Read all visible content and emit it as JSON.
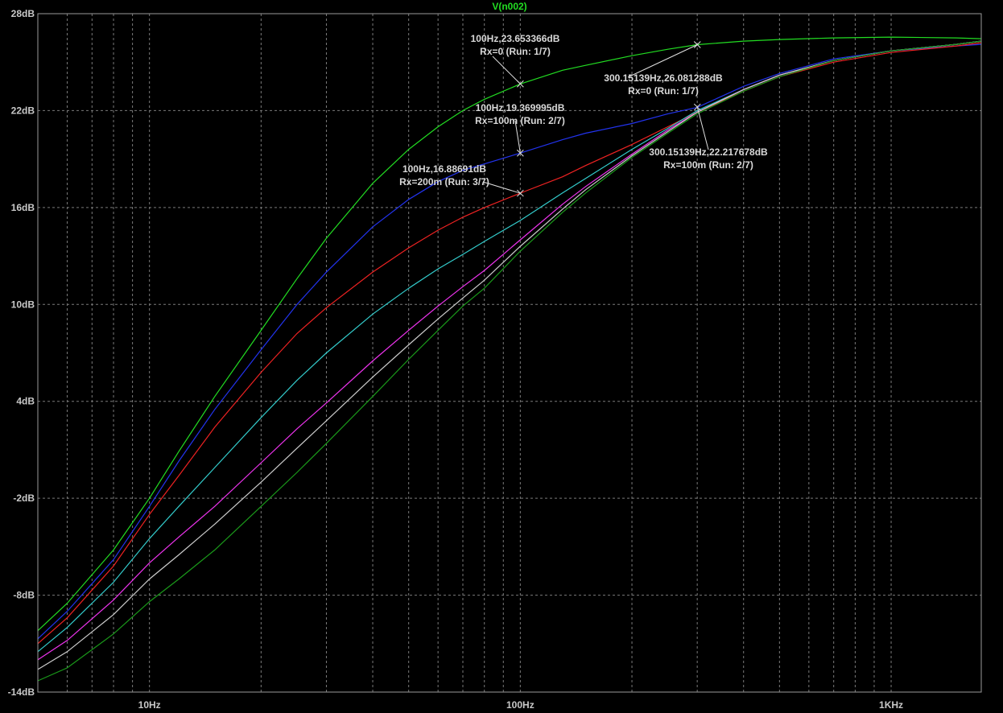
{
  "chart_data": {
    "type": "line",
    "title": "V(n002)",
    "xscale": "log",
    "xlim": [
      5,
      1750
    ],
    "ylim": [
      -14,
      28
    ],
    "x_ticks": [
      {
        "value": 10,
        "label": "10Hz"
      },
      {
        "value": 100,
        "label": "100Hz"
      },
      {
        "value": 1000,
        "label": "1KHz"
      }
    ],
    "y_ticks": [
      {
        "value": 28,
        "label": "28dB"
      },
      {
        "value": 22,
        "label": "22dB"
      },
      {
        "value": 16,
        "label": "16dB"
      },
      {
        "value": 10,
        "label": "10dB"
      },
      {
        "value": 4,
        "label": "4dB"
      },
      {
        "value": -2,
        "label": "-2dB"
      },
      {
        "value": -8,
        "label": "-8dB"
      },
      {
        "value": -14,
        "label": "-14dB"
      }
    ],
    "grid": true,
    "background": "#000000",
    "grid_color": "#7a7a7a",
    "series": [
      {
        "color": "#22dd22",
        "x": [
          5,
          6,
          8,
          10,
          12,
          15,
          20,
          25,
          30,
          40,
          50,
          60,
          70,
          80,
          100,
          130,
          150,
          200,
          250,
          300,
          400,
          500,
          700,
          1000,
          1500,
          1750
        ],
        "y": [
          -10.2,
          -8.5,
          -5.2,
          -2.0,
          0.9,
          4.3,
          8.4,
          11.6,
          14.1,
          17.5,
          19.6,
          21.0,
          22.0,
          22.7,
          23.65,
          24.5,
          24.8,
          25.4,
          25.8,
          26.08,
          26.3,
          26.4,
          26.5,
          26.55,
          26.5,
          26.45
        ]
      },
      {
        "color": "#2233ee",
        "x": [
          5,
          6,
          8,
          10,
          12,
          15,
          20,
          25,
          30,
          40,
          50,
          60,
          70,
          80,
          100,
          130,
          150,
          200,
          250,
          300,
          400,
          500,
          700,
          1000,
          1500,
          1750
        ],
        "y": [
          -10.7,
          -9.0,
          -5.8,
          -2.5,
          0.3,
          3.5,
          7.2,
          10.0,
          12.0,
          14.8,
          16.5,
          17.6,
          18.3,
          18.7,
          19.37,
          20.2,
          20.6,
          21.2,
          21.8,
          22.2,
          23.5,
          24.3,
          25.2,
          25.7,
          26.0,
          26.1
        ]
      },
      {
        "color": "#ee2222",
        "x": [
          5,
          6,
          8,
          10,
          12,
          15,
          20,
          25,
          30,
          40,
          50,
          60,
          70,
          80,
          100,
          130,
          150,
          200,
          250,
          300,
          400,
          500,
          700,
          1000,
          1500,
          1750
        ],
        "y": [
          -11.0,
          -9.4,
          -6.2,
          -3.0,
          -0.6,
          2.4,
          5.8,
          8.2,
          9.8,
          12.0,
          13.5,
          14.6,
          15.4,
          16.0,
          16.89,
          17.9,
          18.6,
          19.9,
          21.0,
          21.9,
          23.2,
          24.1,
          25.0,
          25.6,
          26.0,
          26.2
        ]
      },
      {
        "color": "#33cccc",
        "x": [
          5,
          6,
          8,
          10,
          12,
          15,
          20,
          25,
          30,
          40,
          50,
          60,
          70,
          80,
          100,
          130,
          150,
          200,
          250,
          300,
          400,
          500,
          700,
          1000,
          1500,
          1750
        ],
        "y": [
          -11.5,
          -10.0,
          -7.2,
          -4.5,
          -2.5,
          -0.1,
          3.0,
          5.3,
          7.0,
          9.4,
          11.0,
          12.2,
          13.1,
          13.9,
          15.2,
          16.9,
          17.8,
          19.6,
          20.9,
          22.0,
          23.3,
          24.2,
          25.1,
          25.7,
          26.1,
          26.3
        ]
      },
      {
        "color": "#ee33ee",
        "x": [
          5,
          6,
          8,
          10,
          12,
          15,
          20,
          25,
          30,
          40,
          50,
          60,
          70,
          80,
          100,
          130,
          150,
          200,
          250,
          300,
          400,
          500,
          700,
          1000,
          1500,
          1750
        ],
        "y": [
          -12.0,
          -10.8,
          -8.3,
          -6.0,
          -4.4,
          -2.5,
          0.2,
          2.3,
          3.9,
          6.5,
          8.4,
          9.9,
          11.1,
          12.1,
          14.0,
          16.2,
          17.3,
          19.3,
          20.8,
          21.9,
          23.3,
          24.2,
          25.1,
          25.7,
          26.1,
          26.3
        ]
      },
      {
        "color": "#cccccc",
        "x": [
          5,
          6,
          8,
          10,
          12,
          15,
          20,
          25,
          30,
          40,
          50,
          60,
          70,
          80,
          100,
          130,
          150,
          200,
          250,
          300,
          400,
          500,
          700,
          1000,
          1500,
          1750
        ],
        "y": [
          -12.6,
          -11.5,
          -9.2,
          -7.0,
          -5.5,
          -3.6,
          -1.0,
          1.1,
          2.8,
          5.5,
          7.5,
          9.1,
          10.4,
          11.5,
          13.6,
          15.9,
          17.1,
          19.2,
          20.7,
          21.9,
          23.3,
          24.2,
          25.1,
          25.7,
          26.1,
          26.3
        ]
      },
      {
        "color": "#1a9a1a",
        "x": [
          5,
          6,
          8,
          10,
          12,
          15,
          20,
          25,
          30,
          40,
          50,
          60,
          70,
          80,
          100,
          130,
          150,
          200,
          250,
          300,
          400,
          500,
          700,
          1000,
          1500,
          1750
        ],
        "y": [
          -13.3,
          -12.5,
          -10.4,
          -8.4,
          -7.0,
          -5.2,
          -2.5,
          -0.4,
          1.4,
          4.3,
          6.6,
          8.4,
          9.9,
          11.0,
          13.3,
          15.7,
          16.9,
          19.1,
          20.6,
          21.8,
          23.2,
          24.1,
          25.1,
          25.7,
          26.1,
          26.3
        ]
      }
    ],
    "markers": [
      {
        "x": 100,
        "y": 23.653366
      },
      {
        "x": 300.15139,
        "y": 26.081288
      },
      {
        "x": 100,
        "y": 19.369995
      },
      {
        "x": 300.15139,
        "y": 22.217678
      },
      {
        "x": 100,
        "y": 16.88691
      }
    ],
    "annotations": [
      {
        "line1": "100Hz,23.653366dB",
        "line2": "Rx=0  (Run: 1/7)",
        "marker": 0
      },
      {
        "line1": "300.15139Hz,26.081288dB",
        "line2": "Rx=0  (Run: 1/7)",
        "marker": 1
      },
      {
        "line1": "100Hz,19.369995dB",
        "line2": "Rx=100m  (Run: 2/7)",
        "marker": 2
      },
      {
        "line1": "300.15139Hz,22.217678dB",
        "line2": "Rx=100m  (Run: 2/7)",
        "marker": 3
      },
      {
        "line1": "100Hz,16.88691dB",
        "line2": "Rx=200m  (Run: 3/7)",
        "marker": 4
      }
    ]
  }
}
